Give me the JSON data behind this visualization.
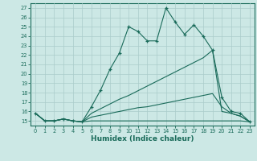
{
  "xlabel": "Humidex (Indice chaleur)",
  "bg_color": "#cce8e5",
  "grid_color": "#aaccca",
  "line_color": "#1a6b5a",
  "xlim": [
    -0.5,
    23.5
  ],
  "ylim": [
    14.5,
    27.5
  ],
  "yticks": [
    15,
    16,
    17,
    18,
    19,
    20,
    21,
    22,
    23,
    24,
    25,
    26,
    27
  ],
  "xticks": [
    0,
    1,
    2,
    3,
    4,
    5,
    6,
    7,
    8,
    9,
    10,
    11,
    12,
    13,
    14,
    15,
    16,
    17,
    18,
    19,
    20,
    21,
    22,
    23
  ],
  "line1_x": [
    0,
    1,
    2,
    3,
    4,
    5,
    6,
    7,
    8,
    9,
    10,
    11,
    12,
    13,
    14,
    15,
    16,
    17,
    18,
    19,
    20,
    21,
    22,
    23
  ],
  "line1_y": [
    15.8,
    15.0,
    15.0,
    15.2,
    15.0,
    14.9,
    15.0,
    15.0,
    15.0,
    15.0,
    15.0,
    15.0,
    15.0,
    15.0,
    15.0,
    15.0,
    15.0,
    15.0,
    15.0,
    15.0,
    15.0,
    15.0,
    15.0,
    14.9
  ],
  "line2_x": [
    0,
    1,
    2,
    3,
    4,
    5,
    6,
    7,
    8,
    9,
    10,
    11,
    12,
    13,
    14,
    15,
    16,
    17,
    18,
    19,
    20,
    21,
    22,
    23
  ],
  "line2_y": [
    15.8,
    15.0,
    15.0,
    15.2,
    15.0,
    14.9,
    15.8,
    16.3,
    16.8,
    17.3,
    17.7,
    18.2,
    18.7,
    19.2,
    19.7,
    20.2,
    20.7,
    21.2,
    21.7,
    22.5,
    16.0,
    15.8,
    15.5,
    14.9
  ],
  "line3_x": [
    0,
    1,
    2,
    3,
    4,
    5,
    6,
    7,
    8,
    9,
    10,
    11,
    12,
    13,
    14,
    15,
    16,
    17,
    18,
    19,
    20,
    21,
    22,
    23
  ],
  "line3_y": [
    15.8,
    15.0,
    15.0,
    15.2,
    15.0,
    14.9,
    16.5,
    18.3,
    20.5,
    22.2,
    25.0,
    24.5,
    23.5,
    23.5,
    27.0,
    25.5,
    24.2,
    25.2,
    24.0,
    22.5,
    17.5,
    16.0,
    15.8,
    14.9
  ],
  "line4_x": [
    0,
    1,
    2,
    3,
    4,
    5,
    6,
    7,
    8,
    9,
    10,
    11,
    12,
    13,
    14,
    15,
    16,
    17,
    18,
    19,
    20,
    21,
    22,
    23
  ],
  "line4_y": [
    15.8,
    15.0,
    15.0,
    15.2,
    15.0,
    14.9,
    15.4,
    15.6,
    15.8,
    16.0,
    16.2,
    16.4,
    16.5,
    16.7,
    16.9,
    17.1,
    17.3,
    17.5,
    17.7,
    17.9,
    16.5,
    15.8,
    15.5,
    14.9
  ]
}
